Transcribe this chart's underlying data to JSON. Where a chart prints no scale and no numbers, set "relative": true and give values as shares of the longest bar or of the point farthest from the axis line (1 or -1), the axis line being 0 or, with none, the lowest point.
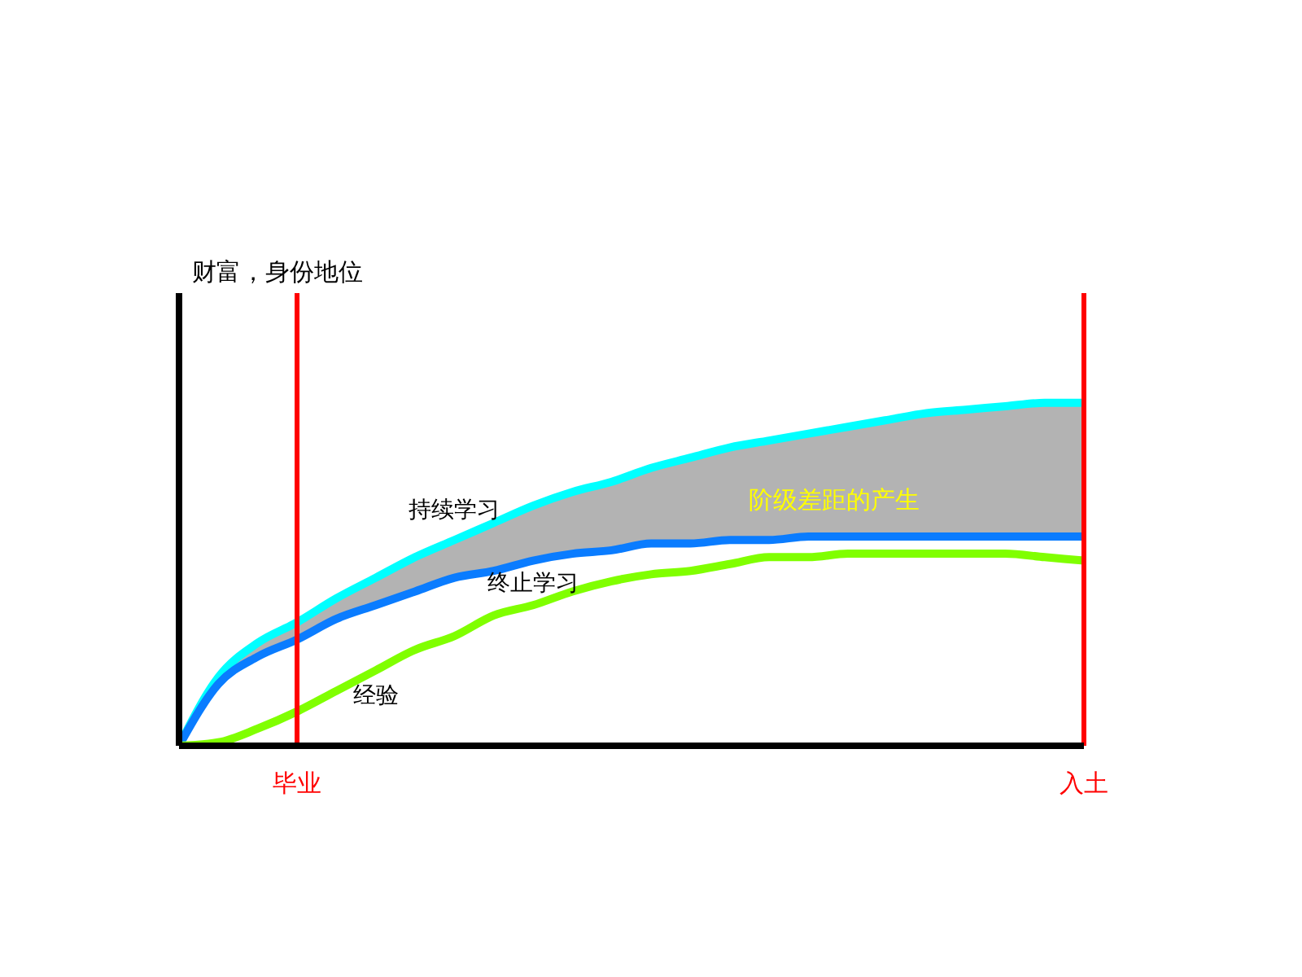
{
  "chart_data": {
    "type": "line",
    "ylabel": "财富，身份地位",
    "relative": true,
    "legend": false,
    "grid": false,
    "marker": "none",
    "line_style": "solid",
    "categories": [
      null,
      null,
      null,
      "毕业",
      null,
      null,
      null,
      null,
      null,
      null,
      null,
      null,
      null,
      null,
      null,
      null,
      null,
      null,
      null,
      null,
      null,
      null,
      null,
      "入土"
    ],
    "series": [
      {
        "name": "持续学习",
        "color": "#00ffff",
        "values": [
          0,
          0.2,
          0.3,
          0.36,
          0.43,
          0.49,
          0.55,
          0.6,
          0.65,
          0.7,
          0.74,
          0.77,
          0.81,
          0.84,
          0.87,
          0.89,
          0.91,
          0.93,
          0.95,
          0.97,
          0.98,
          0.99,
          1.0,
          1.0
        ],
        "lower": [
          0,
          0.18,
          0.26,
          0.31,
          0.37,
          0.41,
          0.45,
          0.49,
          0.51,
          0.54,
          0.56,
          0.57,
          0.59,
          0.59,
          0.6,
          0.6,
          0.61,
          0.61,
          0.61,
          0.61,
          0.61,
          0.61,
          0.61,
          0.61
        ],
        "upper": [
          0,
          0.2,
          0.3,
          0.36,
          0.43,
          0.49,
          0.55,
          0.6,
          0.65,
          0.7,
          0.74,
          0.77,
          0.81,
          0.84,
          0.87,
          0.89,
          0.91,
          0.93,
          0.95,
          0.97,
          0.98,
          0.99,
          1.0,
          1.0
        ]
      },
      {
        "name": "终止学习",
        "color": "#0a7cff",
        "values": [
          0,
          0.18,
          0.26,
          0.31,
          0.37,
          0.41,
          0.45,
          0.49,
          0.51,
          0.54,
          0.56,
          0.57,
          0.59,
          0.59,
          0.6,
          0.6,
          0.61,
          0.61,
          0.61,
          0.61,
          0.61,
          0.61,
          0.61,
          0.61
        ]
      },
      {
        "name": "经验",
        "color": "#80ff00",
        "values": [
          0,
          0.01,
          0.05,
          0.1,
          0.16,
          0.22,
          0.28,
          0.32,
          0.38,
          0.41,
          0.45,
          0.48,
          0.5,
          0.51,
          0.53,
          0.55,
          0.55,
          0.56,
          0.56,
          0.56,
          0.56,
          0.56,
          0.55,
          0.54
        ]
      }
    ],
    "ref_lines": [
      {
        "axis": "x",
        "value": "毕业",
        "color": "#ff0000"
      },
      {
        "axis": "x",
        "value": "入土",
        "color": "#ff0000"
      }
    ],
    "annotations": [
      "阶级差距的产生"
    ]
  }
}
